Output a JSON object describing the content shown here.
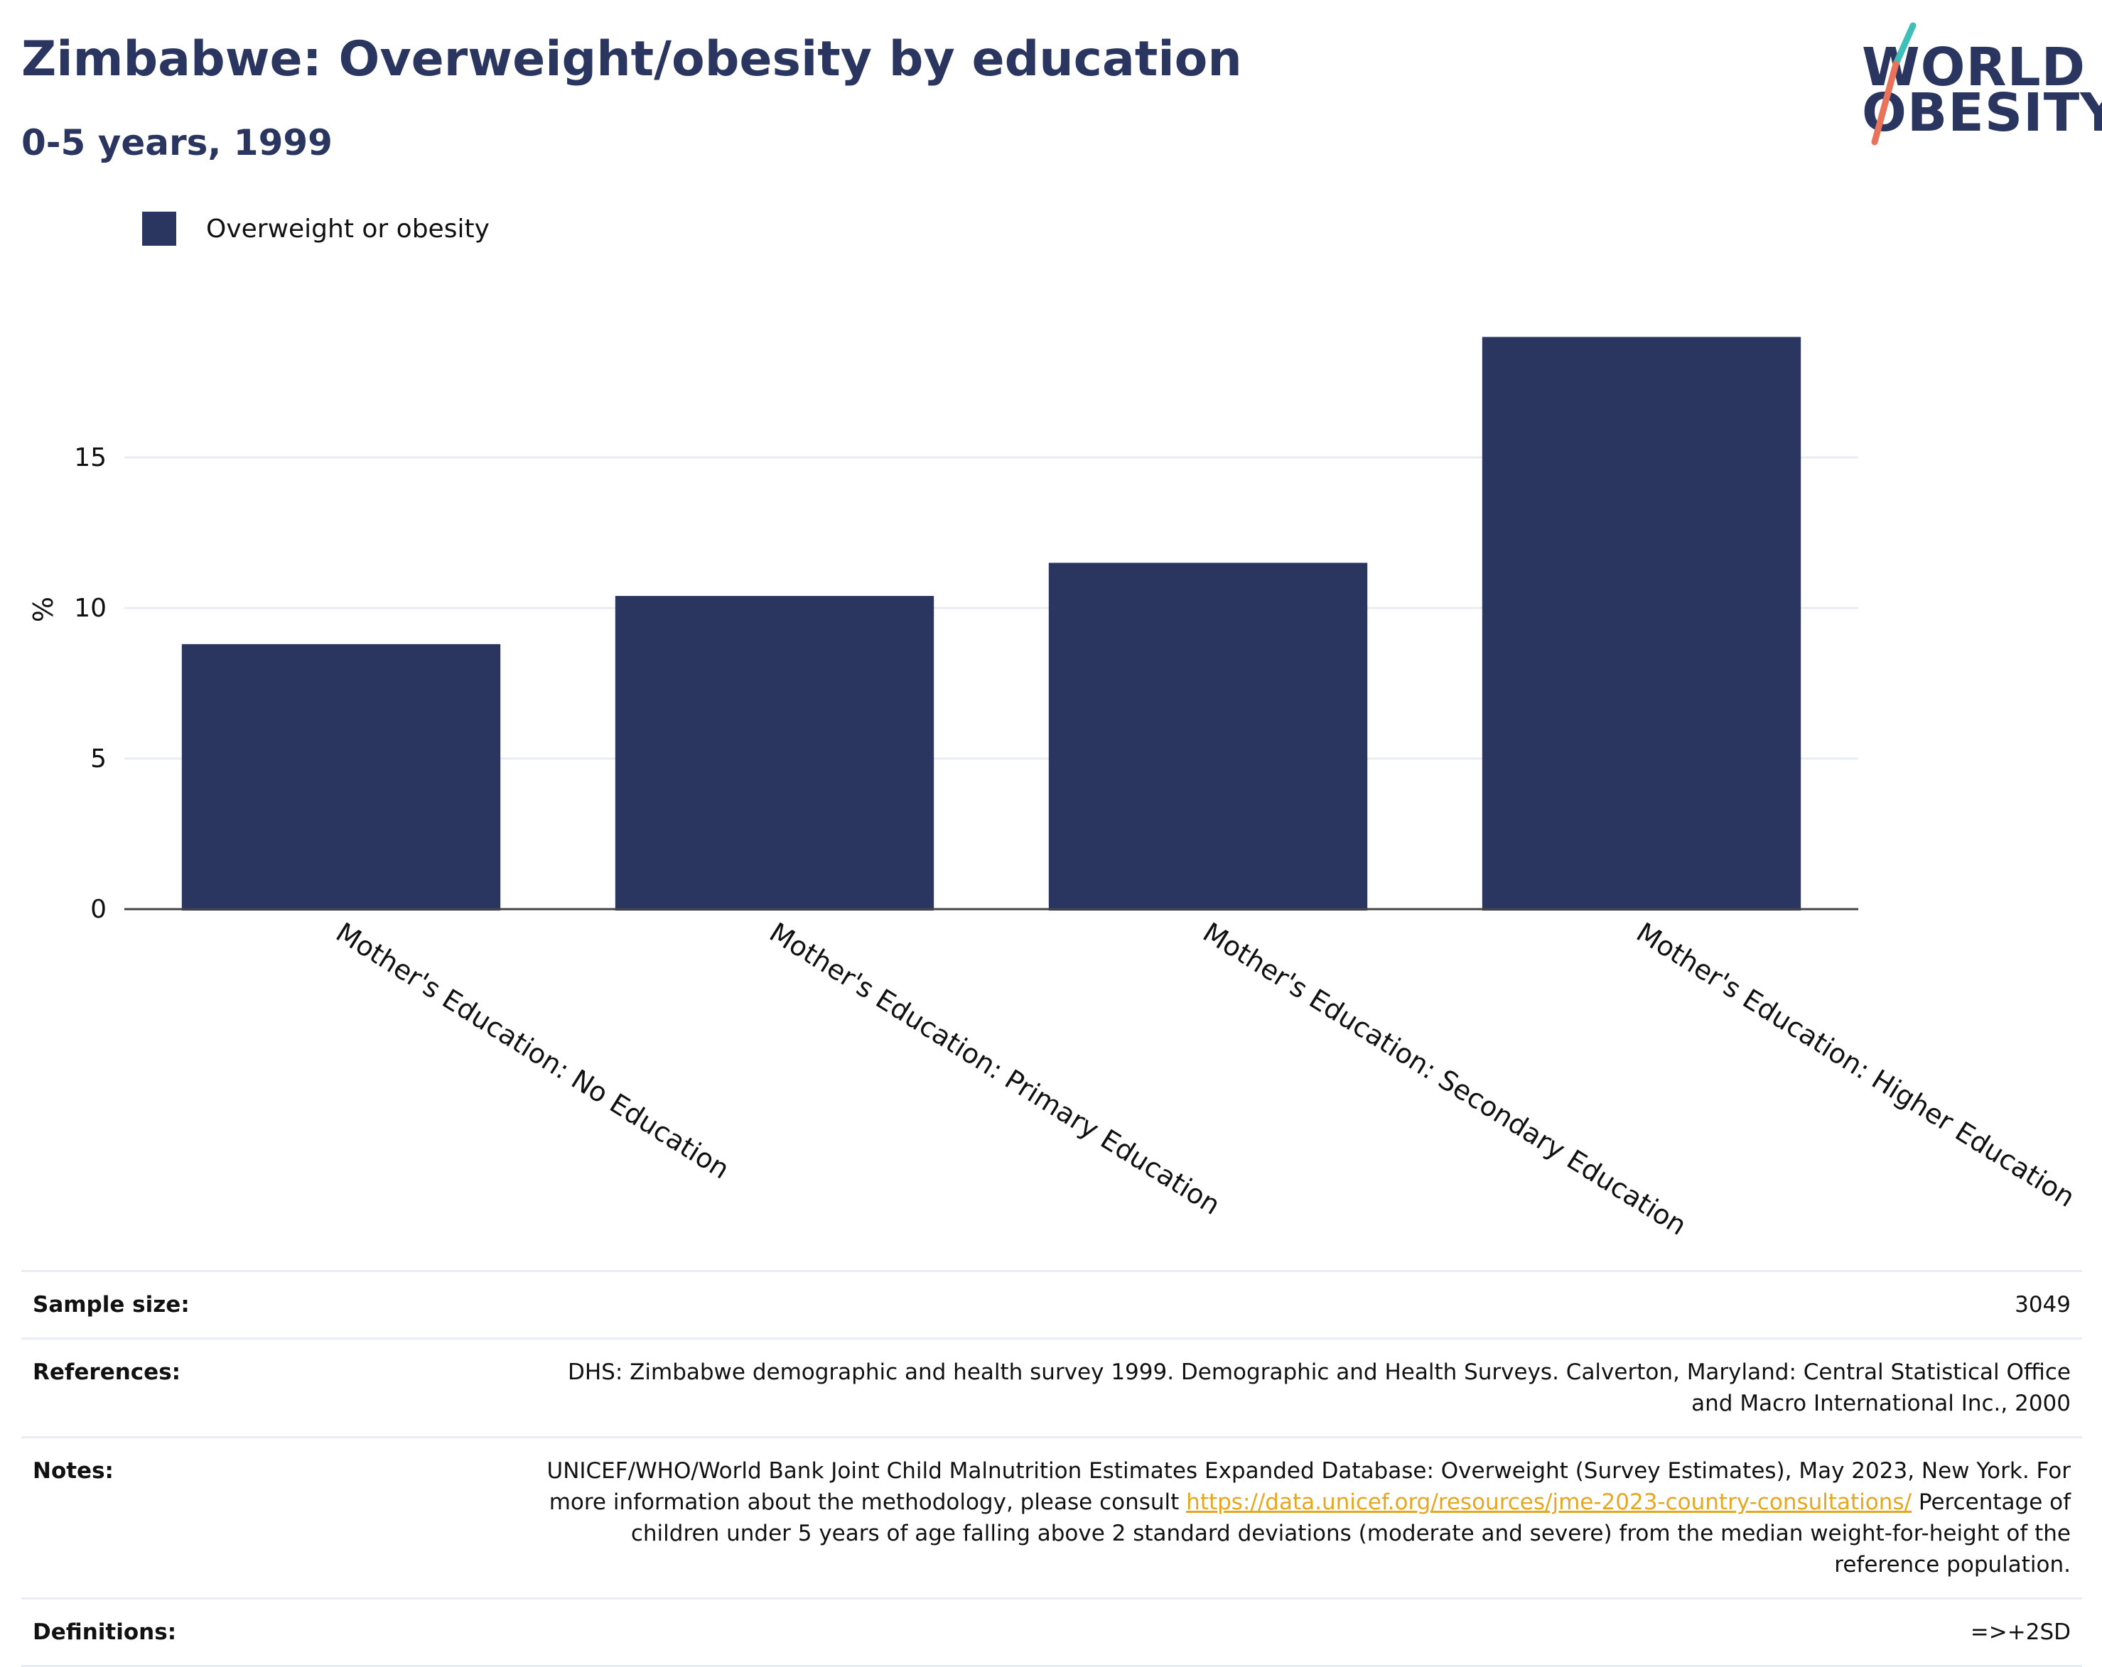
{
  "header": {
    "title": "Zimbabwe: Overweight/obesity by education",
    "subtitle": "0-5 years, 1999"
  },
  "logo": {
    "line1": "WORLD",
    "line2": "OBESITY",
    "slash_colors": [
      "#3fbfb7",
      "#e8735a"
    ]
  },
  "colors": {
    "bar": "#2a3660",
    "title": "#2a3660",
    "link": "#e7a61f",
    "grid": "#e9ecf4"
  },
  "legend": {
    "label": "Overweight or obesity"
  },
  "chart_data": {
    "type": "bar",
    "categories": [
      "Mother's Education: No Education",
      "Mother's Education: Primary Education",
      "Mother's Education: Secondary Education",
      "Mother's Education: Higher Education"
    ],
    "series": [
      {
        "name": "Overweight or obesity",
        "values": [
          8.8,
          10.4,
          11.5,
          19.0
        ]
      }
    ],
    "ylabel": "%",
    "xlabel": "",
    "ylim": [
      0,
      20
    ],
    "yticks": [
      0,
      5,
      10,
      15
    ],
    "grid": true,
    "legend_position": "top-left"
  },
  "info": {
    "sample_size": {
      "label": "Sample size:",
      "value": "3049"
    },
    "references": {
      "label": "References:",
      "value": "DHS: Zimbabwe demographic and health survey 1999. Demographic and Health Surveys. Calverton, Maryland: Central Statistical Office and Macro International Inc., 2000"
    },
    "notes": {
      "label": "Notes:",
      "text_before": "UNICEF/WHO/World Bank Joint Child Malnutrition Estimates Expanded Database: Overweight (Survey Estimates), May 2023, New York. For more information about the methodology, please consult ",
      "link": "https://data.unicef.org/resources/jme-2023-country-consultations/",
      "text_after": " Percentage of children under 5 years of age falling above 2 standard deviations (moderate and severe) from the median weight-for-height of the reference population."
    },
    "definitions": {
      "label": "Definitions:",
      "value": "=>+2SD"
    }
  }
}
